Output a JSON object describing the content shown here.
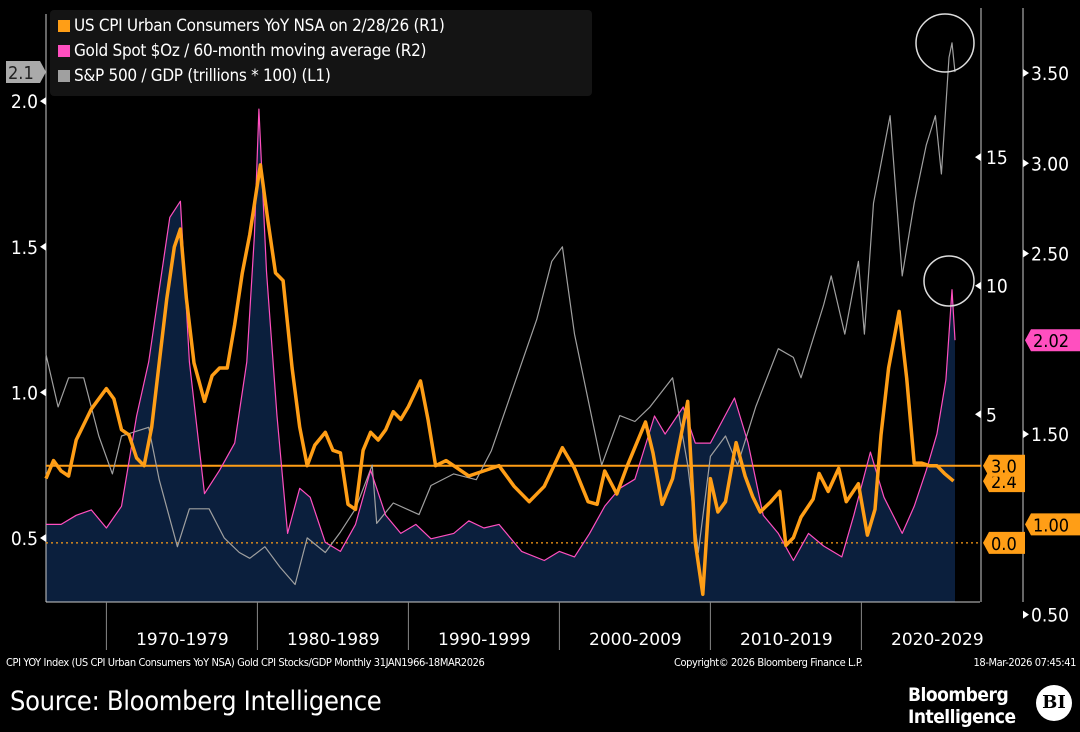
{
  "chart_data": {
    "type": "line",
    "legend": [
      {
        "label": "US CPI Urban Consumers YoY NSA  on 2/28/26 (R1)",
        "color": "#ff9e16"
      },
      {
        "label": "Gold Spot $Oz / 60-month moving average (R2)",
        "color": "#ff4fbf"
      },
      {
        "label": "S&P 500 / GDP (trillions * 100) (L1)",
        "color": "#a0a0a0"
      }
    ],
    "legend_placement": "top-left",
    "x_range": [
      1966,
      2026.2
    ],
    "x_tick_labels": [
      {
        "label": "1970-1979",
        "start": 1970
      },
      {
        "label": "1980-1989",
        "start": 1980
      },
      {
        "label": "1990-1999",
        "start": 1990
      },
      {
        "label": "2000-2009",
        "start": 2000
      },
      {
        "label": "2010-2019",
        "start": 2010
      },
      {
        "label": "2020-2029",
        "start": 2020
      }
    ],
    "L1": {
      "range": [
        0.28,
        2.32
      ],
      "ticks": [
        "0.5",
        "1.0",
        "1.5",
        "2.0"
      ],
      "last_label": "2.1"
    },
    "R1": {
      "range": [
        -2.3,
        20.8
      ],
      "ticks": [
        "5",
        "10",
        "15"
      ],
      "last_label": "2.4",
      "ref_labels": [
        "3.0",
        "0.0"
      ]
    },
    "R2": {
      "range": [
        0.57,
        3.86
      ],
      "ticks": [
        "0.50",
        "1.50",
        "2.50",
        "3.00",
        "3.50"
      ],
      "last_label": "2.02",
      "ref_label": "1.00"
    },
    "series": [
      {
        "name": "CPI YoY",
        "axis": "R1",
        "color": "#ff9e16",
        "points": [
          [
            1966,
            2.5
          ],
          [
            1966.5,
            3.2
          ],
          [
            1967,
            2.8
          ],
          [
            1967.5,
            2.6
          ],
          [
            1968,
            4.0
          ],
          [
            1969,
            5.2
          ],
          [
            1970,
            6.0
          ],
          [
            1970.5,
            5.6
          ],
          [
            1971,
            4.4
          ],
          [
            1971.5,
            4.2
          ],
          [
            1972,
            3.3
          ],
          [
            1972.5,
            3.0
          ],
          [
            1973,
            4.5
          ],
          [
            1973.5,
            7.0
          ],
          [
            1974,
            9.5
          ],
          [
            1974.5,
            11.5
          ],
          [
            1974.9,
            12.2
          ],
          [
            1975.3,
            9.5
          ],
          [
            1975.8,
            7.0
          ],
          [
            1976.5,
            5.5
          ],
          [
            1977,
            6.5
          ],
          [
            1977.5,
            6.8
          ],
          [
            1978,
            6.8
          ],
          [
            1978.5,
            8.5
          ],
          [
            1979,
            10.5
          ],
          [
            1979.5,
            12.0
          ],
          [
            1980.2,
            14.7
          ],
          [
            1980.7,
            12.5
          ],
          [
            1981.2,
            10.5
          ],
          [
            1981.7,
            10.2
          ],
          [
            1982.3,
            6.8
          ],
          [
            1982.8,
            4.5
          ],
          [
            1983.3,
            3.0
          ],
          [
            1983.8,
            3.8
          ],
          [
            1984.5,
            4.3
          ],
          [
            1985,
            3.6
          ],
          [
            1985.5,
            3.5
          ],
          [
            1986,
            1.5
          ],
          [
            1986.5,
            1.3
          ],
          [
            1987,
            3.6
          ],
          [
            1987.5,
            4.3
          ],
          [
            1988,
            4.0
          ],
          [
            1988.5,
            4.4
          ],
          [
            1989,
            5.1
          ],
          [
            1989.5,
            4.8
          ],
          [
            1990,
            5.3
          ],
          [
            1990.8,
            6.3
          ],
          [
            1991.3,
            4.8
          ],
          [
            1991.8,
            3.0
          ],
          [
            1992.5,
            3.2
          ],
          [
            1993,
            3.0
          ],
          [
            1994,
            2.6
          ],
          [
            1995,
            2.8
          ],
          [
            1996,
            3.0
          ],
          [
            1997,
            2.2
          ],
          [
            1998,
            1.6
          ],
          [
            1999,
            2.2
          ],
          [
            2000.2,
            3.7
          ],
          [
            2001,
            2.9
          ],
          [
            2001.9,
            1.6
          ],
          [
            2002.5,
            1.5
          ],
          [
            2003,
            2.8
          ],
          [
            2003.8,
            1.9
          ],
          [
            2004.5,
            3.0
          ],
          [
            2005.7,
            4.7
          ],
          [
            2006.2,
            3.5
          ],
          [
            2006.8,
            1.5
          ],
          [
            2007.5,
            2.5
          ],
          [
            2008.5,
            5.5
          ],
          [
            2009,
            0.0
          ],
          [
            2009.5,
            -2.0
          ],
          [
            2010,
            2.5
          ],
          [
            2010.5,
            1.2
          ],
          [
            2011,
            1.6
          ],
          [
            2011.7,
            3.9
          ],
          [
            2012.3,
            2.6
          ],
          [
            2012.8,
            1.8
          ],
          [
            2013.3,
            1.2
          ],
          [
            2014,
            1.6
          ],
          [
            2014.6,
            2.0
          ],
          [
            2015,
            -0.1
          ],
          [
            2015.5,
            0.2
          ],
          [
            2016,
            1.0
          ],
          [
            2016.8,
            1.7
          ],
          [
            2017.2,
            2.7
          ],
          [
            2017.8,
            2.0
          ],
          [
            2018.5,
            2.9
          ],
          [
            2019,
            1.6
          ],
          [
            2019.8,
            2.3
          ],
          [
            2020.4,
            0.3
          ],
          [
            2020.9,
            1.3
          ],
          [
            2021.3,
            4.2
          ],
          [
            2021.8,
            6.8
          ],
          [
            2022.5,
            9.0
          ],
          [
            2023,
            6.4
          ],
          [
            2023.5,
            3.1
          ],
          [
            2024,
            3.1
          ],
          [
            2024.5,
            3.0
          ],
          [
            2025,
            3.0
          ],
          [
            2025.5,
            2.7
          ],
          [
            2026.1,
            2.4
          ]
        ]
      },
      {
        "name": "Gold / 60m MA",
        "axis": "R2",
        "color": "#ff4fbf",
        "points": [
          [
            1966,
            1.0
          ],
          [
            1967,
            1.0
          ],
          [
            1968,
            1.05
          ],
          [
            1969,
            1.08
          ],
          [
            1970,
            0.98
          ],
          [
            1971,
            1.1
          ],
          [
            1972,
            1.6
          ],
          [
            1972.8,
            1.9
          ],
          [
            1973.5,
            2.3
          ],
          [
            1974.2,
            2.7
          ],
          [
            1974.9,
            2.79
          ],
          [
            1975.5,
            1.9
          ],
          [
            1976.5,
            1.17
          ],
          [
            1977.5,
            1.3
          ],
          [
            1978.5,
            1.45
          ],
          [
            1979.3,
            1.9
          ],
          [
            1979.8,
            2.6
          ],
          [
            1980.1,
            3.3
          ],
          [
            1980.6,
            2.4
          ],
          [
            1981.3,
            1.6
          ],
          [
            1982,
            0.95
          ],
          [
            1982.8,
            1.2
          ],
          [
            1983.5,
            1.15
          ],
          [
            1984.5,
            0.9
          ],
          [
            1985.5,
            0.85
          ],
          [
            1986.5,
            1.0
          ],
          [
            1987.5,
            1.3
          ],
          [
            1988.5,
            1.05
          ],
          [
            1989.5,
            0.95
          ],
          [
            1990.5,
            1.0
          ],
          [
            1991.5,
            0.92
          ],
          [
            1993,
            0.95
          ],
          [
            1994,
            1.02
          ],
          [
            1995,
            0.98
          ],
          [
            1996,
            1.0
          ],
          [
            1997.5,
            0.85
          ],
          [
            1999,
            0.8
          ],
          [
            2000,
            0.85
          ],
          [
            2001,
            0.82
          ],
          [
            2002,
            0.95
          ],
          [
            2003,
            1.1
          ],
          [
            2004,
            1.2
          ],
          [
            2005,
            1.25
          ],
          [
            2006.3,
            1.6
          ],
          [
            2007,
            1.5
          ],
          [
            2008.2,
            1.65
          ],
          [
            2009,
            1.45
          ],
          [
            2010,
            1.45
          ],
          [
            2011.6,
            1.7
          ],
          [
            2012.5,
            1.45
          ],
          [
            2013.5,
            1.05
          ],
          [
            2014.5,
            0.95
          ],
          [
            2015.5,
            0.8
          ],
          [
            2016.5,
            0.95
          ],
          [
            2017.5,
            0.88
          ],
          [
            2018.7,
            0.82
          ],
          [
            2019.5,
            1.05
          ],
          [
            2020.6,
            1.4
          ],
          [
            2021.5,
            1.15
          ],
          [
            2022.7,
            0.95
          ],
          [
            2023.5,
            1.1
          ],
          [
            2024.3,
            1.3
          ],
          [
            2025,
            1.5
          ],
          [
            2025.6,
            1.8
          ],
          [
            2026.0,
            2.3
          ],
          [
            2026.2,
            2.02
          ]
        ]
      },
      {
        "name": "S&P 500 / GDP",
        "axis": "L1",
        "color": "#a0a0a0",
        "points": [
          [
            1966,
            1.13
          ],
          [
            1966.8,
            0.95
          ],
          [
            1967.5,
            1.05
          ],
          [
            1968.5,
            1.05
          ],
          [
            1969.5,
            0.85
          ],
          [
            1970.4,
            0.72
          ],
          [
            1971,
            0.85
          ],
          [
            1972.8,
            0.88
          ],
          [
            1973.5,
            0.7
          ],
          [
            1974.7,
            0.47
          ],
          [
            1975.5,
            0.6
          ],
          [
            1976.8,
            0.6
          ],
          [
            1977.8,
            0.5
          ],
          [
            1978.8,
            0.45
          ],
          [
            1979.5,
            0.43
          ],
          [
            1980.5,
            0.47
          ],
          [
            1981.5,
            0.4
          ],
          [
            1982.5,
            0.34
          ],
          [
            1983.3,
            0.5
          ],
          [
            1984.5,
            0.45
          ],
          [
            1985.5,
            0.52
          ],
          [
            1986.5,
            0.6
          ],
          [
            1987.6,
            0.75
          ],
          [
            1987.9,
            0.55
          ],
          [
            1989,
            0.62
          ],
          [
            1990.7,
            0.58
          ],
          [
            1991.5,
            0.68
          ],
          [
            1993,
            0.72
          ],
          [
            1994.5,
            0.7
          ],
          [
            1995.5,
            0.8
          ],
          [
            1996.5,
            0.95
          ],
          [
            1997.5,
            1.1
          ],
          [
            1998.5,
            1.25
          ],
          [
            1999.5,
            1.45
          ],
          [
            2000.2,
            1.5
          ],
          [
            2001,
            1.2
          ],
          [
            2002,
            0.95
          ],
          [
            2002.8,
            0.75
          ],
          [
            2004,
            0.92
          ],
          [
            2005,
            0.9
          ],
          [
            2006,
            0.95
          ],
          [
            2007.5,
            1.05
          ],
          [
            2008.5,
            0.75
          ],
          [
            2009.2,
            0.45
          ],
          [
            2010,
            0.78
          ],
          [
            2011,
            0.85
          ],
          [
            2011.8,
            0.75
          ],
          [
            2013,
            0.95
          ],
          [
            2014.5,
            1.15
          ],
          [
            2015.5,
            1.12
          ],
          [
            2016,
            1.05
          ],
          [
            2017.5,
            1.3
          ],
          [
            2018,
            1.4
          ],
          [
            2018.9,
            1.2
          ],
          [
            2019.8,
            1.45
          ],
          [
            2020.2,
            1.2
          ],
          [
            2020.8,
            1.65
          ],
          [
            2021.9,
            1.95
          ],
          [
            2022.7,
            1.4
          ],
          [
            2023.5,
            1.65
          ],
          [
            2024.3,
            1.85
          ],
          [
            2024.9,
            1.95
          ],
          [
            2025.3,
            1.75
          ],
          [
            2025.8,
            2.15
          ],
          [
            2026.0,
            2.2
          ],
          [
            2026.2,
            2.1
          ]
        ]
      }
    ],
    "reference_lines": [
      {
        "axis": "R1",
        "value": 3.0,
        "style": "solid"
      },
      {
        "axis": "R1",
        "value": 0.0,
        "style": "dotted"
      }
    ]
  },
  "footer": {
    "info": "CPI YOY Index (US CPI Urban Consumers YoY NSA) Gold CPI Stocks/GDP Monthly 31JAN1966-18MAR2026",
    "copyright": "Copyright© 2026 Bloomberg Finance L.P.",
    "timestamp": "18-Mar-2026 07:45:41"
  },
  "source": "Source: Bloomberg Intelligence",
  "logo": {
    "line1": "Bloomberg",
    "line2": "Intelligence",
    "badge": "BI"
  }
}
